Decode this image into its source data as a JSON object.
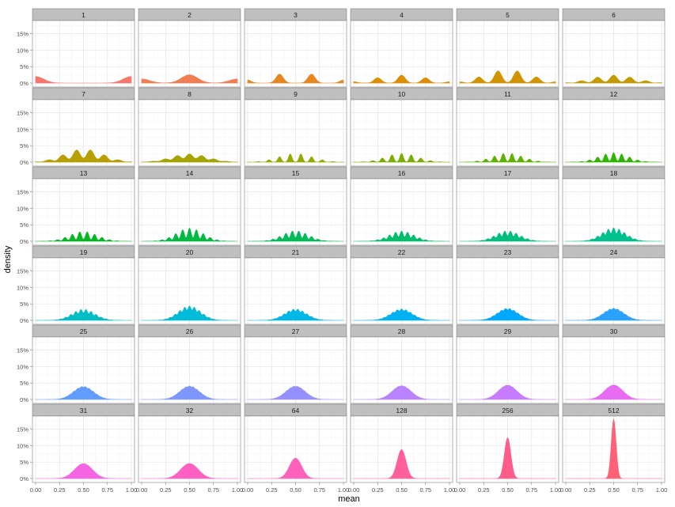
{
  "chart_data": {
    "type": "area",
    "title": "",
    "xlabel": "mean",
    "ylabel": "density",
    "xlim": [
      0,
      1
    ],
    "ylim": [
      0,
      0.19
    ],
    "x_ticks": [
      0,
      0.25,
      0.5,
      0.75,
      1
    ],
    "x_tick_labels": [
      "0.00",
      "0.25",
      "0.50",
      "0.75",
      "1.00"
    ],
    "y_ticks": [
      0,
      0.05,
      0.1,
      0.15
    ],
    "y_tick_labels": [
      "0%",
      "5%",
      "10%",
      "15%"
    ],
    "grid": true,
    "facet_layout": {
      "rows": 6,
      "cols": 6
    },
    "panels": [
      {
        "label": "1",
        "n": 1,
        "color": "#F8766D",
        "peak": 0.02
      },
      {
        "label": "2",
        "n": 2,
        "color": "#F27D52",
        "peak": 0.025
      },
      {
        "label": "3",
        "n": 3,
        "color": "#E7851E",
        "peak": 0.027
      },
      {
        "label": "4",
        "n": 4,
        "color": "#DC8D00",
        "peak": 0.024
      },
      {
        "label": "5",
        "n": 5,
        "color": "#D19300",
        "peak": 0.037
      },
      {
        "label": "6",
        "n": 6,
        "color": "#C59900",
        "peak": 0.024
      },
      {
        "label": "7",
        "n": 7,
        "color": "#B79F00",
        "peak": 0.037
      },
      {
        "label": "8",
        "n": 8,
        "color": "#A5A400",
        "peak": 0.025
      },
      {
        "label": "9",
        "n": 9,
        "color": "#93AA00",
        "peak": 0.025
      },
      {
        "label": "10",
        "n": 10,
        "color": "#7CAE00",
        "peak": 0.027
      },
      {
        "label": "11",
        "n": 11,
        "color": "#5EB300",
        "peak": 0.026
      },
      {
        "label": "12",
        "n": 12,
        "color": "#2EB600",
        "peak": 0.029
      },
      {
        "label": "13",
        "n": 13,
        "color": "#00B81F",
        "peak": 0.028
      },
      {
        "label": "14",
        "n": 14,
        "color": "#00BA42",
        "peak": 0.04
      },
      {
        "label": "15",
        "n": 15,
        "color": "#00BC59",
        "peak": 0.031
      },
      {
        "label": "16",
        "n": 16,
        "color": "#00BE6C",
        "peak": 0.031
      },
      {
        "label": "17",
        "n": 17,
        "color": "#00BF7D",
        "peak": 0.031
      },
      {
        "label": "18",
        "n": 18,
        "color": "#00C08E",
        "peak": 0.041
      },
      {
        "label": "19",
        "n": 19,
        "color": "#00BFC4",
        "peak": 0.033
      },
      {
        "label": "20",
        "n": 20,
        "color": "#00BCD8",
        "peak": 0.044
      },
      {
        "label": "21",
        "n": 21,
        "color": "#00B8E7",
        "peak": 0.034
      },
      {
        "label": "22",
        "n": 22,
        "color": "#00B2F3",
        "peak": 0.035
      },
      {
        "label": "23",
        "n": 23,
        "color": "#00A9FF",
        "peak": 0.036
      },
      {
        "label": "24",
        "n": 24,
        "color": "#29A3FF",
        "peak": 0.037
      },
      {
        "label": "25",
        "n": 25,
        "color": "#619CFF",
        "peak": 0.039
      },
      {
        "label": "26",
        "n": 26,
        "color": "#7E96FF",
        "peak": 0.041
      },
      {
        "label": "27",
        "n": 27,
        "color": "#9590FF",
        "peak": 0.04
      },
      {
        "label": "28",
        "n": 28,
        "color": "#B983FF",
        "peak": 0.042
      },
      {
        "label": "29",
        "n": 29,
        "color": "#C77CFF",
        "peak": 0.043
      },
      {
        "label": "30",
        "n": 30,
        "color": "#E76BF3",
        "peak": 0.044
      },
      {
        "label": "31",
        "n": 31,
        "color": "#F564E3",
        "peak": 0.045
      },
      {
        "label": "32",
        "n": 32,
        "color": "#FF61C3",
        "peak": 0.046
      },
      {
        "label": "64",
        "n": 64,
        "color": "#FF62BC",
        "peak": 0.062
      },
      {
        "label": "128",
        "n": 128,
        "color": "#FF5F9A",
        "peak": 0.088
      },
      {
        "label": "256",
        "n": 256,
        "color": "#FF5C8A",
        "peak": 0.124
      },
      {
        "label": "512",
        "n": 512,
        "color": "#FF6176",
        "peak": 0.18
      }
    ]
  }
}
